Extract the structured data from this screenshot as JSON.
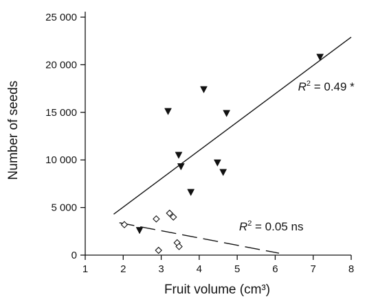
{
  "chart_data": {
    "type": "scatter",
    "xlabel": "Fruit volume (cm³)",
    "ylabel": "Number of seeds",
    "xlim": [
      1,
      8
    ],
    "ylim": [
      0,
      25000
    ],
    "x_ticks": [
      "1",
      "2",
      "3",
      "4",
      "5",
      "6",
      "7",
      "8"
    ],
    "y_ticks": [
      "0",
      "5 000",
      "10 000",
      "15 000",
      "20 000",
      "25 000"
    ],
    "grid": false,
    "legend": "none",
    "series": [
      {
        "marker": "filled-down-triangle",
        "color": "#111111",
        "points": [
          {
            "x": 2.43,
            "y": 2600
          },
          {
            "x": 3.18,
            "y": 15100
          },
          {
            "x": 3.46,
            "y": 10500
          },
          {
            "x": 3.52,
            "y": 9300
          },
          {
            "x": 3.78,
            "y": 6600
          },
          {
            "x": 4.12,
            "y": 17400
          },
          {
            "x": 4.48,
            "y": 9700
          },
          {
            "x": 4.63,
            "y": 8700
          },
          {
            "x": 4.72,
            "y": 14900
          },
          {
            "x": 7.18,
            "y": 20800
          }
        ],
        "fit": {
          "style": "solid",
          "x": [
            1.75,
            8.0
          ],
          "y": [
            4300,
            22900
          ]
        },
        "annotation": {
          "prefix": "R",
          "sup": "2",
          "text": " = 0.49 *",
          "x": 6.6,
          "y": 17300
        }
      },
      {
        "marker": "open-diamond",
        "color": "#111111",
        "points": [
          {
            "x": 2.03,
            "y": 3200
          },
          {
            "x": 2.87,
            "y": 3800
          },
          {
            "x": 2.93,
            "y": 500
          },
          {
            "x": 3.22,
            "y": 4400
          },
          {
            "x": 3.32,
            "y": 4000
          },
          {
            "x": 3.42,
            "y": 1300
          },
          {
            "x": 3.47,
            "y": 900
          }
        ],
        "fit": {
          "style": "dashed",
          "x": [
            1.9,
            6.1
          ],
          "y": [
            3400,
            200
          ]
        },
        "annotation": {
          "prefix": "R",
          "sup": "2",
          "text": " = 0.05 ns",
          "x": 5.05,
          "y": 2600
        }
      }
    ]
  }
}
